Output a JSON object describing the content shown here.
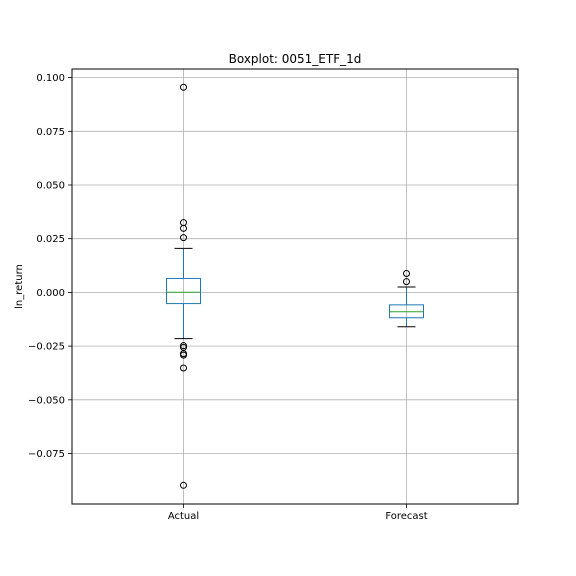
{
  "chart_data": {
    "type": "box",
    "title": "Boxplot: 0051_ETF_1d",
    "xlabel": "",
    "ylabel": "ln_return",
    "ylim": [
      -0.0985,
      0.104
    ],
    "yticks": [
      0.1,
      0.075,
      0.05,
      0.025,
      0.0,
      -0.025,
      -0.05,
      -0.075
    ],
    "ytick_labels": [
      "0.100",
      "0.075",
      "0.050",
      "0.025",
      "0.000",
      "−0.025",
      "−0.050",
      "−0.075"
    ],
    "grid": true,
    "categories": [
      "Actual",
      "Forecast"
    ],
    "boxes": [
      {
        "name": "Actual",
        "whisker_low": -0.0215,
        "q1": -0.0052,
        "median": 0.0001,
        "q3": 0.0065,
        "whisker_high": 0.0205,
        "outliers": [
          0.0955,
          0.0325,
          0.0298,
          0.0255,
          -0.0248,
          -0.0256,
          -0.0285,
          -0.0292,
          -0.0352,
          -0.0898
        ]
      },
      {
        "name": "Forecast",
        "whisker_low": -0.016,
        "q1": -0.0118,
        "median": -0.009,
        "q3": -0.0058,
        "whisker_high": 0.0025,
        "outliers": [
          0.0088,
          0.005
        ]
      }
    ],
    "colors": {
      "box": "#1f77b4",
      "median": "#2ca02c",
      "whisker": "#000000",
      "grid": "#b0b0b0",
      "flier": "#000000"
    }
  }
}
